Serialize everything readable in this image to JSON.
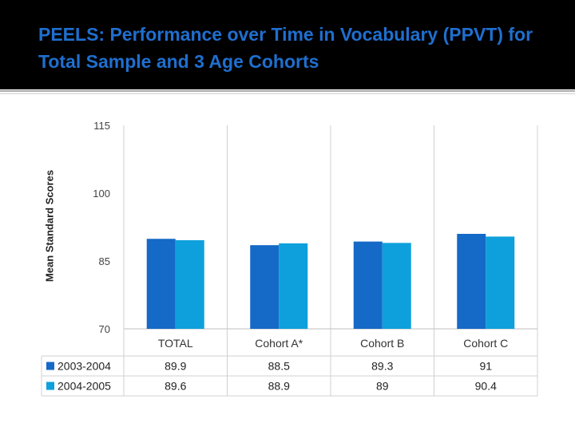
{
  "slide": {
    "title": "PEELS:  Performance over Time in Vocabulary (PPVT) for Total Sample and 3 Age Cohorts"
  },
  "chart_data": {
    "type": "bar",
    "title": "",
    "xlabel": "",
    "ylabel": "Mean Standard Scores",
    "ylim": [
      70,
      115
    ],
    "yticks": [
      70,
      85,
      100,
      115
    ],
    "categories": [
      "TOTAL",
      "Cohort A*",
      "Cohort B",
      "Cohort C"
    ],
    "series": [
      {
        "name": "2003-2004",
        "color": "#1569c7",
        "values": [
          89.9,
          88.5,
          89.3,
          91
        ],
        "labels": [
          "89.9",
          "88.5",
          "89.3",
          "91"
        ]
      },
      {
        "name": "2004-2005",
        "color": "#0ea0dc",
        "values": [
          89.6,
          88.9,
          89,
          90.4
        ],
        "labels": [
          "89.6",
          "88.9",
          "89",
          "90.4"
        ]
      }
    ],
    "legend": "data-table",
    "grid": {
      "horizontal": false,
      "vertical": true
    }
  }
}
